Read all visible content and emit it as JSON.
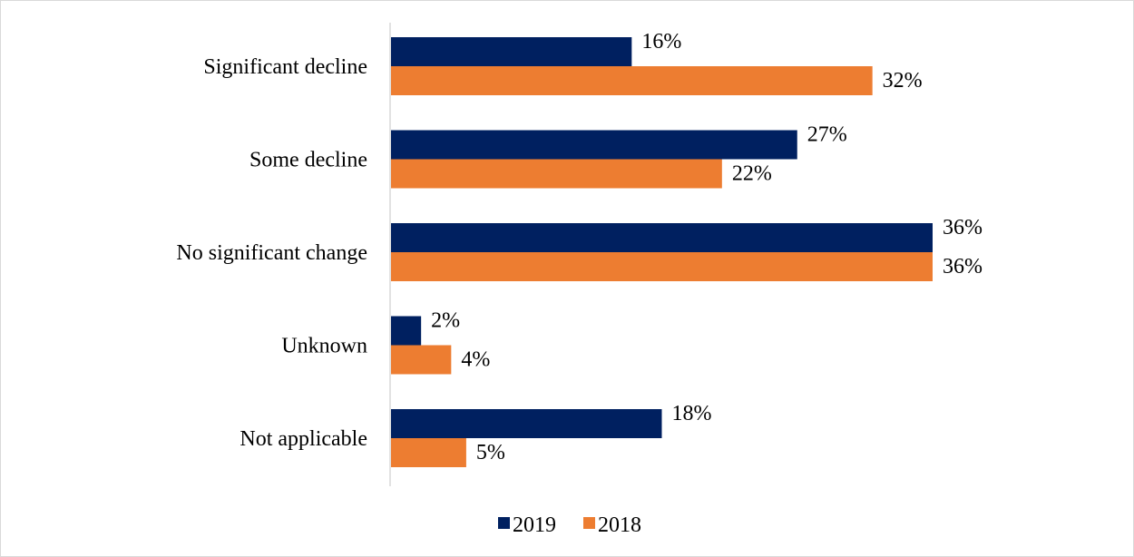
{
  "chart_data": {
    "type": "bar",
    "orientation": "horizontal",
    "title": "",
    "xlabel": "",
    "ylabel": "",
    "categories": [
      "Significant decline",
      "Some decline",
      "No significant change",
      "Unknown",
      "Not applicable"
    ],
    "series": [
      {
        "name": "2019",
        "values": [
          16,
          27,
          36,
          2,
          18
        ],
        "labels": [
          "16%",
          "27%",
          "36%",
          "2%",
          "18%"
        ],
        "color": "#002060"
      },
      {
        "name": "2018",
        "values": [
          32,
          22,
          36,
          4,
          5
        ],
        "labels": [
          "32%",
          "22%",
          "36%",
          "4%",
          "5%"
        ],
        "color": "#ED7D31"
      }
    ],
    "xlim": [
      0,
      36
    ],
    "value_unit": "%",
    "grid": false,
    "legend_position": "bottom"
  }
}
